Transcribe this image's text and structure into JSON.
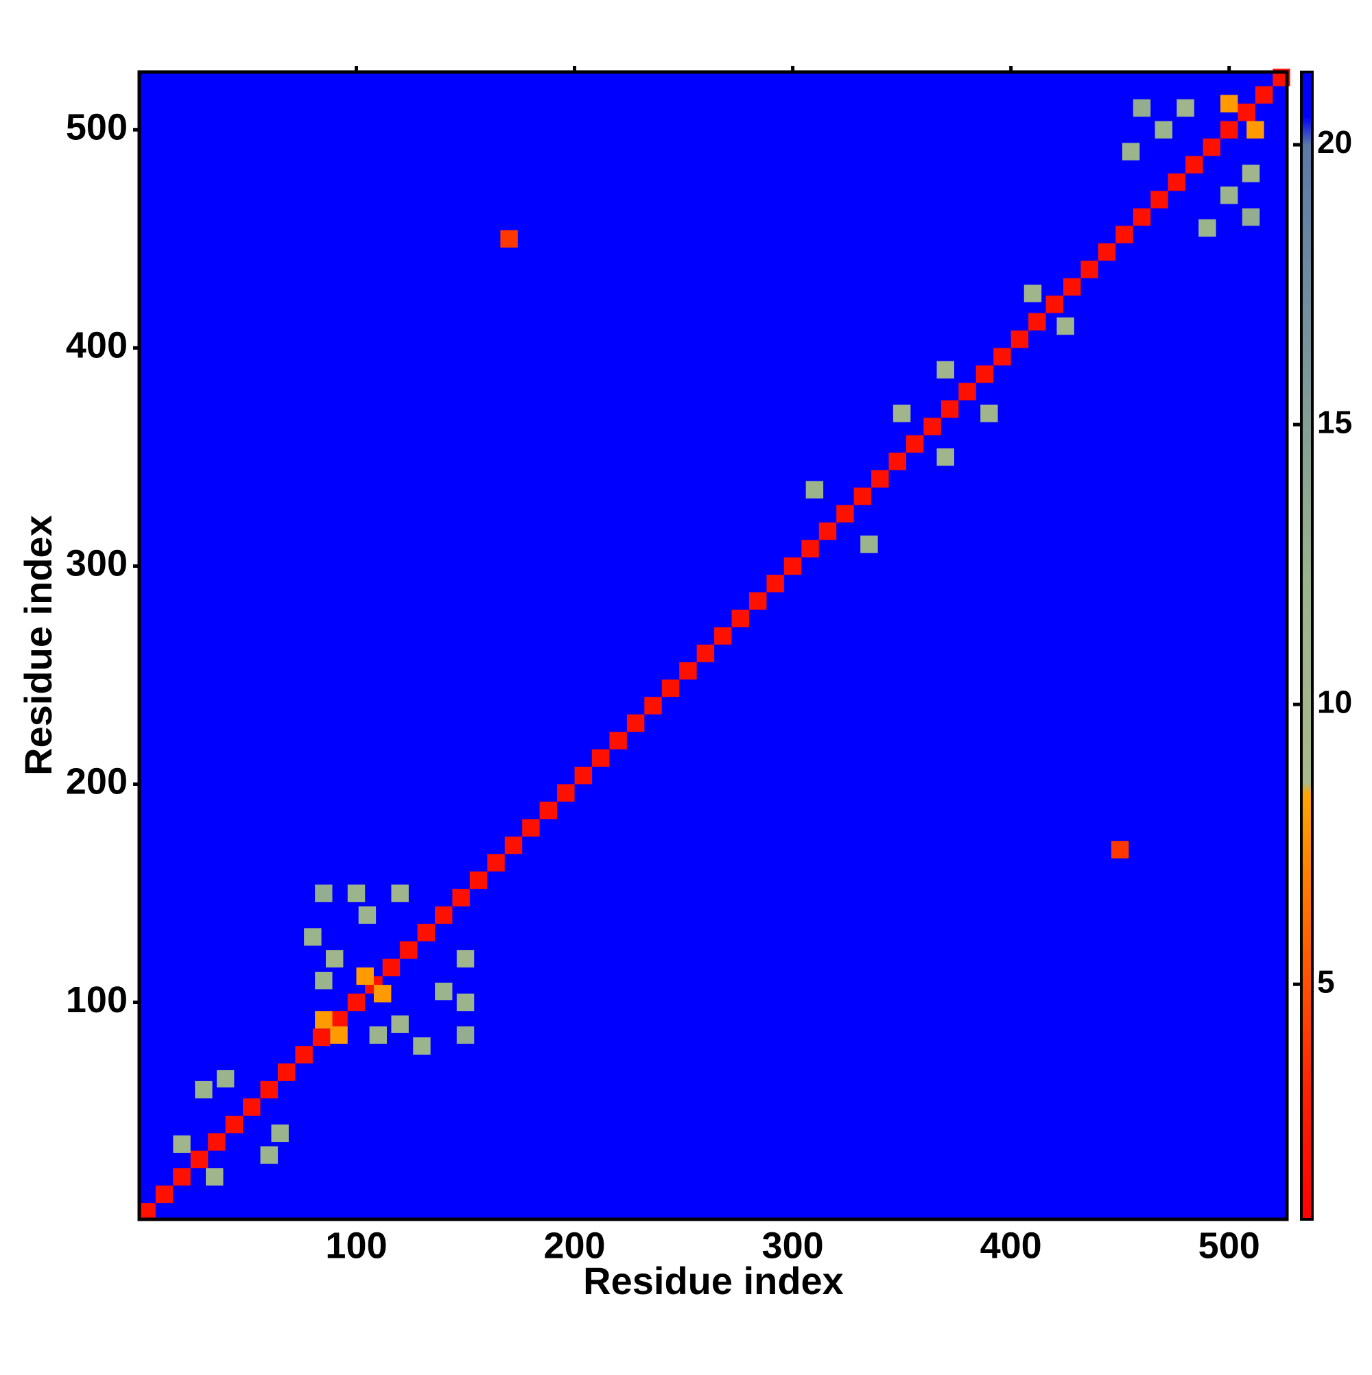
{
  "chart_data": {
    "type": "heatmap",
    "xlabel": "Residue index",
    "ylabel": "Residue index",
    "xlim": [
      0.5,
      526.5
    ],
    "ylim": [
      0.5,
      526.5
    ],
    "xticks": [
      100,
      200,
      300,
      400,
      500
    ],
    "yticks": [
      100,
      200,
      300,
      400,
      500
    ],
    "background_value": 21,
    "x": [
      4,
      12,
      20,
      28,
      36,
      44,
      52,
      60,
      68,
      76,
      84,
      92,
      100,
      108,
      116,
      124,
      132,
      140,
      148,
      156,
      164,
      172,
      180,
      188,
      196,
      204,
      212,
      220,
      228,
      236,
      244,
      252,
      260,
      268,
      276,
      284,
      292,
      300,
      308,
      316,
      324,
      332,
      340,
      348,
      356,
      364,
      372,
      380,
      388,
      396,
      404,
      412,
      420,
      428,
      436,
      444,
      452,
      460,
      468,
      476,
      484,
      492,
      500,
      508,
      516,
      524,
      30,
      60,
      40,
      65,
      20,
      35,
      85,
      110,
      80,
      130,
      100,
      150,
      90,
      120,
      105,
      140,
      120,
      150,
      85,
      150,
      85,
      92,
      104,
      112,
      170,
      450,
      350,
      370,
      370,
      390,
      310,
      335,
      410,
      425,
      470,
      500,
      480,
      510,
      455,
      490,
      460,
      510,
      500,
      512
    ],
    "y": [
      4,
      12,
      20,
      28,
      36,
      44,
      52,
      60,
      68,
      76,
      84,
      92,
      100,
      108,
      116,
      124,
      132,
      140,
      148,
      156,
      164,
      172,
      180,
      188,
      196,
      204,
      212,
      220,
      228,
      236,
      244,
      252,
      260,
      268,
      276,
      284,
      292,
      300,
      308,
      316,
      324,
      332,
      340,
      348,
      356,
      364,
      372,
      380,
      388,
      396,
      404,
      412,
      420,
      428,
      436,
      444,
      452,
      460,
      468,
      476,
      484,
      492,
      500,
      508,
      516,
      524,
      60,
      30,
      65,
      40,
      35,
      20,
      110,
      85,
      130,
      80,
      150,
      100,
      120,
      90,
      140,
      105,
      150,
      120,
      150,
      85,
      92,
      85,
      112,
      104,
      450,
      170,
      370,
      350,
      390,
      370,
      335,
      310,
      425,
      410,
      500,
      470,
      510,
      480,
      490,
      455,
      510,
      460,
      512,
      500
    ],
    "values": [
      2,
      2,
      2,
      2,
      2,
      2,
      2,
      2,
      2,
      2,
      2,
      2,
      2,
      2,
      2,
      2,
      2,
      2,
      2,
      2,
      2,
      2,
      2,
      2,
      2,
      2,
      2,
      2,
      2,
      2,
      2,
      2,
      2,
      2,
      2,
      2,
      2,
      2,
      2,
      2,
      2,
      2,
      2,
      2,
      2,
      2,
      2,
      2,
      2,
      2,
      2,
      2,
      2,
      2,
      2,
      2,
      2,
      2,
      2,
      2,
      2,
      2,
      2,
      2,
      2,
      2,
      12,
      12,
      12,
      12,
      11,
      11,
      12,
      12,
      12,
      12,
      12,
      12,
      11,
      11,
      12,
      12,
      11,
      11,
      13,
      13,
      8,
      8,
      8,
      8,
      4,
      4,
      11,
      11,
      11,
      11,
      12,
      12,
      11,
      11,
      12,
      12,
      11,
      11,
      12,
      12,
      13,
      13,
      8,
      8
    ],
    "clim": [
      0.8,
      21.3
    ],
    "cticks": [
      5,
      10,
      15,
      20
    ],
    "colorscale": [
      [
        0.8,
        "#ff0000"
      ],
      [
        3,
        "#ff2000"
      ],
      [
        7,
        "#ff8000"
      ],
      [
        8.4,
        "#ffa500"
      ],
      [
        8.6,
        "#a9b98a"
      ],
      [
        12,
        "#9cb48c"
      ],
      [
        20,
        "#5a7aa8"
      ],
      [
        20.5,
        "#0000ff"
      ],
      [
        21.3,
        "#0000ff"
      ]
    ]
  }
}
